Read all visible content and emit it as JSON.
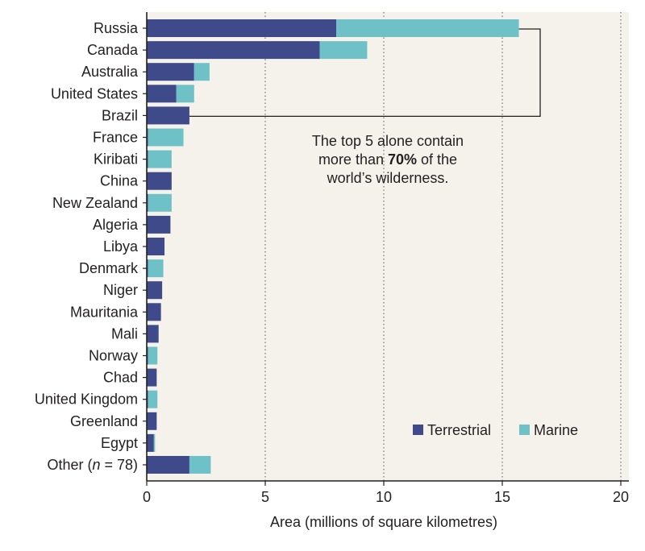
{
  "chart_data": {
    "type": "bar",
    "orientation": "horizontal",
    "stacked": true,
    "categories": [
      "Russia",
      "Canada",
      "Australia",
      "United States",
      "Brazil",
      "France",
      "Kiribati",
      "China",
      "New Zealand",
      "Algeria",
      "Libya",
      "Denmark",
      "Niger",
      "Mauritania",
      "Mali",
      "Norway",
      "Chad",
      "United Kingdom",
      "Greenland",
      "Egypt",
      "Other (n = 78)"
    ],
    "category_parts": {
      "other_prefix": "Other (",
      "other_italic": "n",
      "other_suffix": " = 78)"
    },
    "series": [
      {
        "name": "Terrestrial",
        "color": "#3e4a89",
        "values": [
          8.0,
          7.3,
          2.0,
          1.25,
          1.8,
          0.05,
          0.05,
          1.05,
          0.05,
          1.0,
          0.75,
          0.05,
          0.65,
          0.6,
          0.5,
          0.05,
          0.42,
          0.05,
          0.42,
          0.3,
          1.8
        ]
      },
      {
        "name": "Marine",
        "color": "#6fc1c8",
        "values": [
          7.7,
          2.0,
          0.65,
          0.75,
          0.0,
          1.5,
          1.0,
          0.0,
          1.0,
          0.0,
          0.0,
          0.65,
          0.0,
          0.0,
          0.0,
          0.4,
          0.0,
          0.4,
          0.0,
          0.05,
          0.9
        ]
      }
    ],
    "xlim": [
      0,
      20
    ],
    "xticks": [
      0,
      5,
      10,
      15,
      20
    ],
    "xlabel": "Area (millions of square kilometres)",
    "ylabel": "",
    "grid": "vertical dotted",
    "legend_position": "bottom-right",
    "annotation": {
      "line1": "The top 5 alone contain",
      "line2_pre": "more than ",
      "line2_bold": "70%",
      "line2_post": " of the",
      "line3": "world’s wilderness."
    }
  },
  "colors": {
    "plot_background": "#f5f2ec",
    "axis": "#231f20",
    "grid": "#555555"
  }
}
